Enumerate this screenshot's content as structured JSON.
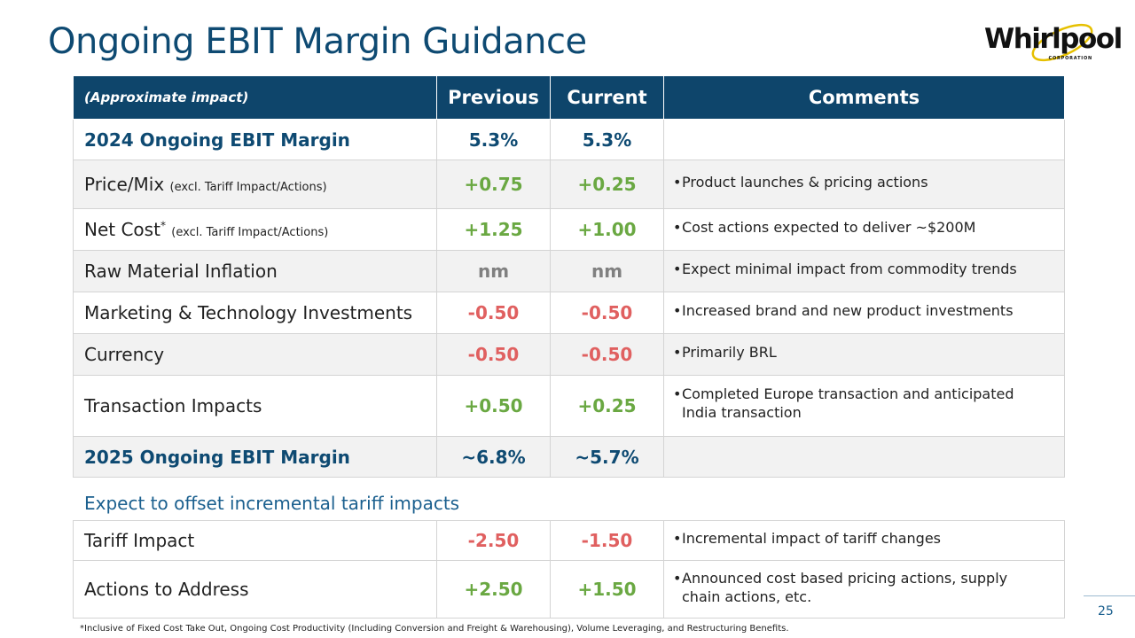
{
  "title": "Ongoing EBIT Margin Guidance",
  "logo": {
    "word": "Whirlpool",
    "sub": "CORPORATION"
  },
  "header": {
    "label": "(Approximate impact)",
    "previous": "Previous",
    "current": "Current",
    "comments": "Comments"
  },
  "rows": [
    {
      "label": "2024 Ongoing EBIT Margin",
      "note": "",
      "previous": "5.3%",
      "current": "5.3%",
      "comment": ""
    },
    {
      "label": "Price/Mix",
      "note": "(excl. Tariff Impact/Actions)",
      "previous": "+0.75",
      "current": "+0.25",
      "comment": "Product launches & pricing actions"
    },
    {
      "label": "Net Cost",
      "sup": "*",
      "note": "(excl. Tariff Impact/Actions)",
      "previous": "+1.25",
      "current": "+1.00",
      "comment": "Cost actions expected to deliver ~$200M"
    },
    {
      "label": "Raw Material Inflation",
      "note": "",
      "previous": "nm",
      "current": "nm",
      "comment": "Expect minimal impact from commodity trends"
    },
    {
      "label": "Marketing & Technology Investments",
      "note": "",
      "previous": "-0.50",
      "current": "-0.50",
      "comment": "Increased brand and new product investments"
    },
    {
      "label": "Currency",
      "note": "",
      "previous": "-0.50",
      "current": "-0.50",
      "comment": "Primarily BRL"
    },
    {
      "label": "Transaction Impacts",
      "note": "",
      "previous": "+0.50",
      "current": "+0.25",
      "comment": "Completed Europe transaction and anticipated India transaction"
    },
    {
      "label": "2025 Ongoing EBIT Margin",
      "note": "",
      "previous": "~6.8%",
      "current": "~5.7%",
      "comment": ""
    }
  ],
  "subheading": "Expect to offset incremental tariff impacts",
  "tariff_rows": [
    {
      "label": "Tariff Impact",
      "previous": "-2.50",
      "current": "-1.50",
      "comment": "Incremental impact of tariff changes"
    },
    {
      "label": "Actions to Address",
      "previous": "+2.50",
      "current": "+1.50",
      "comment": "Announced cost based pricing actions, supply chain actions, etc."
    }
  ],
  "bullet": "•",
  "page_number": "25",
  "footnote": "*Inclusive of Fixed Cost Take Out, Ongoing Cost Productivity (Including Conversion and Freight & Warehousing), Volume Leveraging, and Restructuring Benefits.",
  "colors": {
    "navy": "#0e456b",
    "positive": "#6aa842",
    "negative": "#e06060",
    "neutral": "#808080",
    "accent": "#e6c000"
  }
}
